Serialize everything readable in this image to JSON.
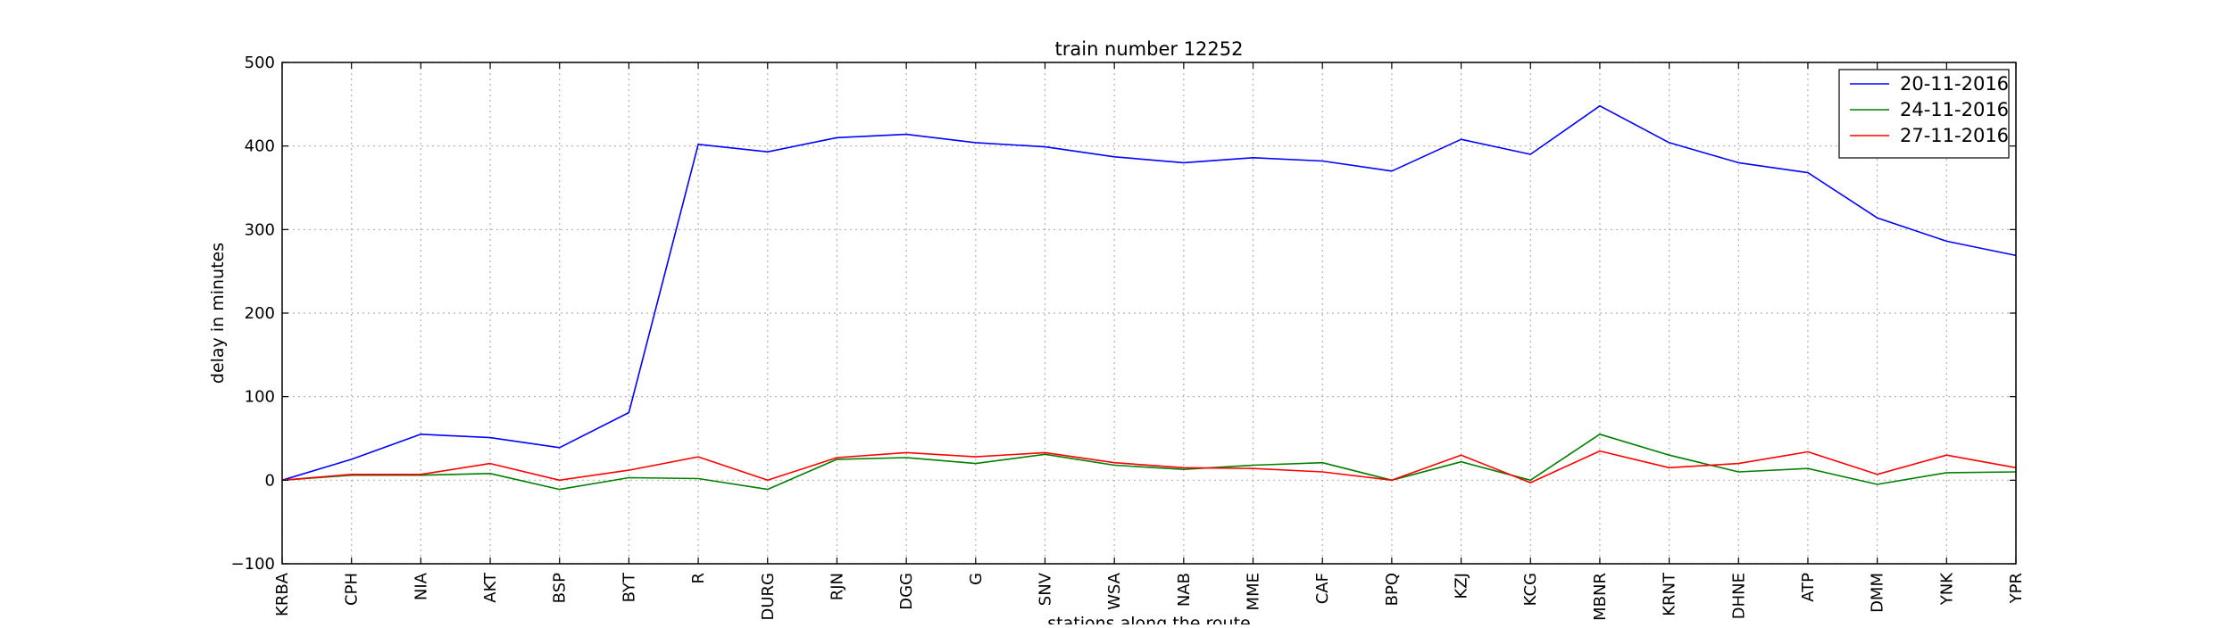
{
  "chart_data": {
    "type": "line",
    "title": "train number 12252",
    "xlabel": "stations along the route",
    "ylabel": "delay in minutes",
    "ylim": [
      -100,
      500
    ],
    "yticks": [
      -100,
      0,
      100,
      200,
      300,
      400,
      500
    ],
    "grid": true,
    "legend_position": "top-right",
    "categories": [
      "KRBA",
      "CPH",
      "NIA",
      "AKT",
      "BSP",
      "BYT",
      "R",
      "DURG",
      "RJN",
      "DGG",
      "G",
      "SNV",
      "WSA",
      "NAB",
      "MME",
      "CAF",
      "BPQ",
      "KZJ",
      "KCG",
      "MBNR",
      "KRNT",
      "DHNE",
      "ATP",
      "DMM",
      "YNK",
      "YPR"
    ],
    "series": [
      {
        "name": "20-11-2016",
        "color": "#0000ff",
        "values": [
          0,
          25,
          55,
          51,
          39,
          81,
          402,
          393,
          410,
          414,
          404,
          399,
          387,
          380,
          386,
          382,
          370,
          408,
          390,
          448,
          404,
          380,
          368,
          314,
          286,
          269
        ]
      },
      {
        "name": "24-11-2016",
        "color": "#008000",
        "values": [
          0,
          6,
          6,
          8,
          -11,
          3,
          2,
          -11,
          25,
          27,
          20,
          31,
          18,
          13,
          18,
          21,
          0,
          22,
          0,
          55,
          30,
          10,
          14,
          -5,
          9,
          10
        ]
      },
      {
        "name": "27-11-2016",
        "color": "#ff0000",
        "values": [
          0,
          7,
          7,
          20,
          0,
          12,
          28,
          0,
          27,
          33,
          28,
          33,
          21,
          15,
          14,
          10,
          0,
          30,
          -3,
          35,
          15,
          20,
          34,
          7,
          30,
          15
        ]
      }
    ]
  }
}
